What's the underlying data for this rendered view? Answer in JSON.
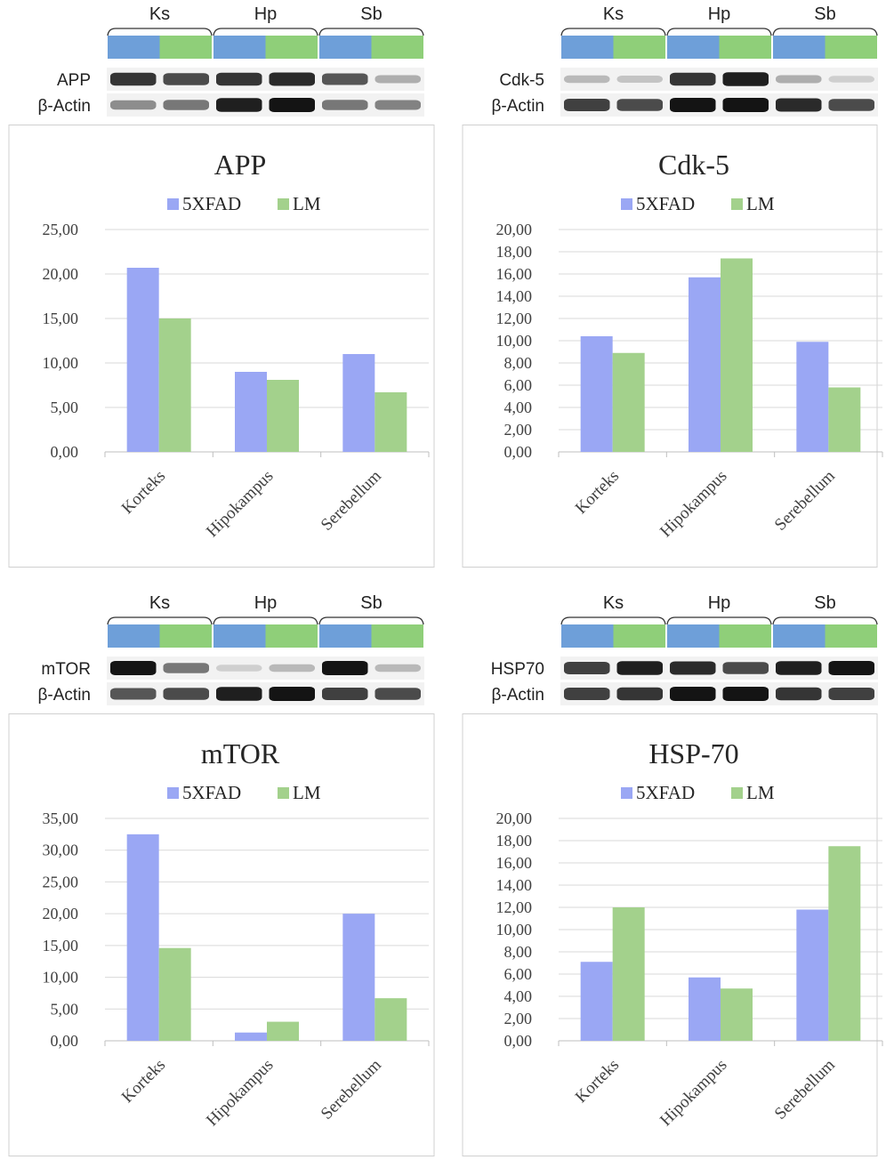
{
  "colors": {
    "series_5xfad": "#9aa7f4",
    "series_lm": "#a3d18c",
    "lane_5xfad": "#6e9fd9",
    "lane_lm": "#8fcf79",
    "grid": "#d9d9d9",
    "axis": "#bfbfbf",
    "frame": "#d0d0d0",
    "band": "#141414"
  },
  "panels": [
    {
      "blot": {
        "regions": [
          "Ks",
          "Hp",
          "Sb"
        ],
        "rows": [
          "APP",
          "β-Actin"
        ],
        "band_darkness": [
          [
            0.85,
            0.75,
            0.85,
            0.9,
            0.7,
            0.3
          ],
          [
            0.45,
            0.55,
            0.95,
            1.0,
            0.55,
            0.5
          ]
        ]
      },
      "chart_data": {
        "type": "bar",
        "title": "APP",
        "categories": [
          "Korteks",
          "Hipokampus",
          "Serebellum"
        ],
        "series": [
          {
            "name": "5XFAD",
            "values": [
              20.7,
              9.0,
              11.0
            ]
          },
          {
            "name": "LM",
            "values": [
              15.0,
              8.1,
              6.7
            ]
          }
        ],
        "ylim": [
          0,
          25
        ],
        "yticks": [
          "0,00",
          "5,00",
          "10,00",
          "15,00",
          "20,00",
          "25,00"
        ],
        "grid": true,
        "legend": "top"
      }
    },
    {
      "blot": {
        "regions": [
          "Ks",
          "Hp",
          "Sb"
        ],
        "rows": [
          "Cdk-5",
          "β-Actin"
        ],
        "band_darkness": [
          [
            0.25,
            0.2,
            0.85,
            0.95,
            0.3,
            0.15
          ],
          [
            0.8,
            0.75,
            1.0,
            1.0,
            0.9,
            0.75
          ]
        ]
      },
      "chart_data": {
        "type": "bar",
        "title": "Cdk-5",
        "categories": [
          "Korteks",
          "Hipokampus",
          "Serebellum"
        ],
        "series": [
          {
            "name": "5XFAD",
            "values": [
              10.4,
              15.7,
              9.9
            ]
          },
          {
            "name": "LM",
            "values": [
              8.9,
              17.4,
              5.8
            ]
          }
        ],
        "ylim": [
          0,
          20
        ],
        "yticks": [
          "0,00",
          "2,00",
          "4,00",
          "6,00",
          "8,00",
          "10,00",
          "12,00",
          "14,00",
          "16,00",
          "18,00",
          "20,00"
        ],
        "grid": true,
        "legend": "top"
      }
    },
    {
      "blot": {
        "regions": [
          "Ks",
          "Hp",
          "Sb"
        ],
        "rows": [
          "mTOR",
          "β-Actin"
        ],
        "band_darkness": [
          [
            1.0,
            0.55,
            0.15,
            0.25,
            1.0,
            0.25
          ],
          [
            0.7,
            0.75,
            0.95,
            1.0,
            0.8,
            0.75
          ]
        ]
      },
      "chart_data": {
        "type": "bar",
        "title": "mTOR",
        "categories": [
          "Korteks",
          "Hipokampus",
          "Serebellum"
        ],
        "series": [
          {
            "name": "5XFAD",
            "values": [
              32.5,
              1.3,
              20.0
            ]
          },
          {
            "name": "LM",
            "values": [
              14.6,
              3.0,
              6.7
            ]
          }
        ],
        "ylim": [
          0,
          35
        ],
        "yticks": [
          "0,00",
          "5,00",
          "10,00",
          "15,00",
          "20,00",
          "25,00",
          "30,00",
          "35,00"
        ],
        "grid": true,
        "legend": "top"
      }
    },
    {
      "blot": {
        "regions": [
          "Ks",
          "Hp",
          "Sb"
        ],
        "rows": [
          "HSP70",
          "β-Actin"
        ],
        "band_darkness": [
          [
            0.8,
            0.95,
            0.9,
            0.75,
            0.95,
            1.0
          ],
          [
            0.8,
            0.85,
            1.0,
            1.0,
            0.85,
            0.8
          ]
        ]
      },
      "chart_data": {
        "type": "bar",
        "title": "HSP-70",
        "categories": [
          "Korteks",
          "Hipokampus",
          "Serebellum"
        ],
        "series": [
          {
            "name": "5XFAD",
            "values": [
              7.1,
              5.7,
              11.8
            ]
          },
          {
            "name": "LM",
            "values": [
              12.0,
              4.7,
              17.5
            ]
          }
        ],
        "ylim": [
          0,
          20
        ],
        "yticks": [
          "0,00",
          "2,00",
          "4,00",
          "6,00",
          "8,00",
          "10,00",
          "12,00",
          "14,00",
          "16,00",
          "18,00",
          "20,00"
        ],
        "grid": true,
        "legend": "top"
      }
    }
  ]
}
